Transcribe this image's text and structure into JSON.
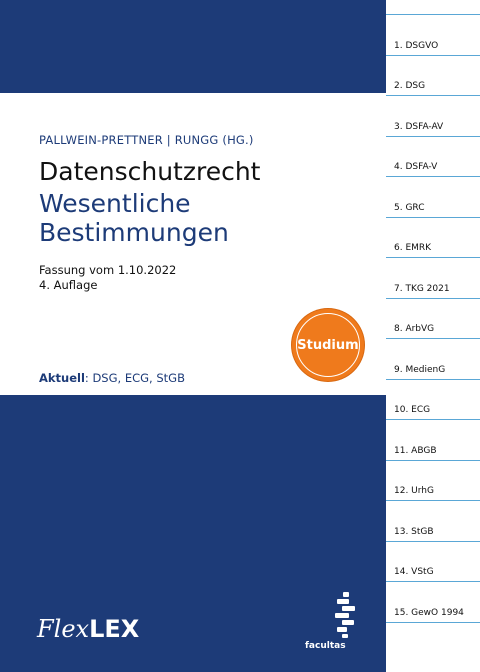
{
  "cover": {
    "editors": "PALLWEIN-PRETTNER | RUNGG (HG.)",
    "title_line1": "Datenschutzrecht",
    "title_line2": "Wesentliche",
    "title_line3": "Bestimmungen",
    "edition_line1": "Fassung vom 1.10.2022",
    "edition_line2": "4. Auflage",
    "aktuell_label": "Aktuell",
    "aktuell_text": ": DSG, ECG, StGB",
    "badge": "Studium",
    "brand_flex": "Flex",
    "brand_lex": "LEX",
    "publisher": "facultas",
    "publisher_logo_icon": "facultas-logo-icon"
  },
  "colors": {
    "navy": "#1d3b78",
    "orange": "#ef7a1c",
    "tab_line": "#5aa7d6"
  },
  "tabs": [
    "1.  DSGVO",
    "2.  DSG",
    "3.  DSFA-AV",
    "4.  DSFA-V",
    "5.  GRC",
    "6.  EMRK",
    "7.  TKG 2021",
    "8.  ArbVG",
    "9.  MedienG",
    "10. ECG",
    "11. ABGB",
    "12. UrhG",
    "13. StGB",
    "14. VStG",
    "15. GewO 1994"
  ]
}
